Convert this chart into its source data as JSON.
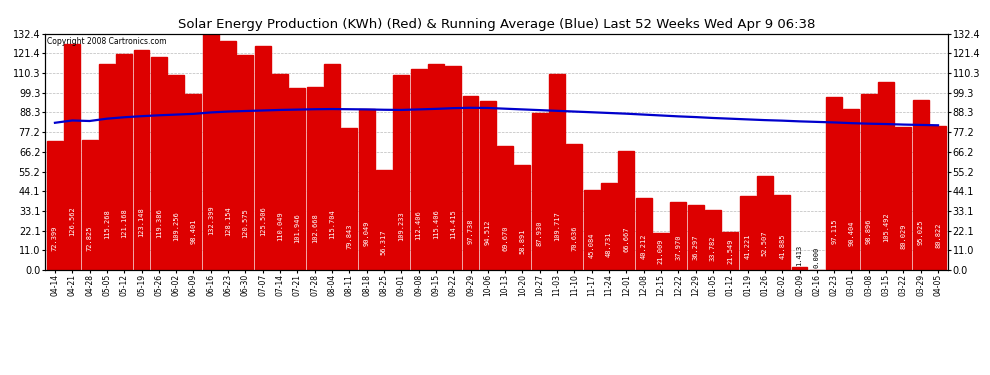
{
  "title": "Solar Energy Production (KWh) (Red) & Running Average (Blue) Last 52 Weeks Wed Apr 9 06:38",
  "copyright": "Copyright 2008 Cartronics.com",
  "bar_color": "#dd0000",
  "line_color": "#0000cc",
  "background_color": "#ffffff",
  "grid_color": "#bbbbbb",
  "ylim": [
    0.0,
    132.4
  ],
  "yticks_left": [
    132.4,
    121.4,
    110.3,
    99.3,
    88.3,
    77.2,
    66.2,
    55.2,
    44.1,
    33.1,
    22.1,
    11.0,
    0.0
  ],
  "categories": [
    "04-14",
    "04-21",
    "04-28",
    "05-05",
    "05-12",
    "05-19",
    "05-26",
    "06-02",
    "06-09",
    "06-16",
    "06-23",
    "06-30",
    "07-07",
    "07-14",
    "07-21",
    "07-28",
    "08-04",
    "08-11",
    "08-18",
    "08-25",
    "09-01",
    "09-08",
    "09-15",
    "09-22",
    "09-29",
    "10-06",
    "10-13",
    "10-20",
    "10-27",
    "11-03",
    "11-10",
    "11-17",
    "11-24",
    "12-01",
    "12-08",
    "12-15",
    "12-22",
    "12-29",
    "01-05",
    "01-12",
    "01-19",
    "01-26",
    "02-02",
    "02-09",
    "02-16",
    "02-23",
    "03-01",
    "03-08",
    "03-15",
    "03-22",
    "03-29",
    "04-05"
  ],
  "values": [
    72.399,
    126.562,
    72.825,
    115.268,
    121.168,
    123.148,
    119.386,
    109.256,
    98.401,
    132.399,
    128.154,
    120.575,
    125.506,
    110.049,
    101.946,
    102.668,
    115.704,
    79.843,
    90.049,
    56.317,
    109.233,
    112.406,
    115.406,
    114.415,
    97.738,
    94.512,
    69.67,
    58.891,
    87.93,
    109.717,
    70.636,
    45.084,
    48.731,
    66.667,
    40.212,
    21.009,
    37.97,
    36.297,
    33.782,
    21.549,
    41.221,
    52.507,
    41.885,
    1.413,
    0.0,
    97.115,
    90.404,
    98.896,
    105.492,
    80.029,
    95.025,
    80.822
  ],
  "running_avg": [
    82.5,
    83.8,
    83.5,
    84.8,
    85.6,
    86.2,
    86.7,
    87.1,
    87.5,
    88.3,
    88.8,
    89.1,
    89.4,
    89.7,
    89.9,
    90.1,
    90.2,
    90.1,
    90.0,
    89.8,
    89.7,
    90.0,
    90.3,
    90.7,
    90.9,
    90.8,
    90.4,
    90.0,
    89.6,
    89.2,
    88.8,
    88.4,
    88.0,
    87.6,
    87.1,
    86.6,
    86.1,
    85.7,
    85.2,
    84.8,
    84.4,
    84.0,
    83.7,
    83.3,
    83.0,
    82.7,
    82.3,
    82.0,
    81.8,
    81.5,
    81.3,
    81.1
  ],
  "title_fontsize": 9.5,
  "label_fontsize": 5.0,
  "tick_fontsize": 7.0
}
